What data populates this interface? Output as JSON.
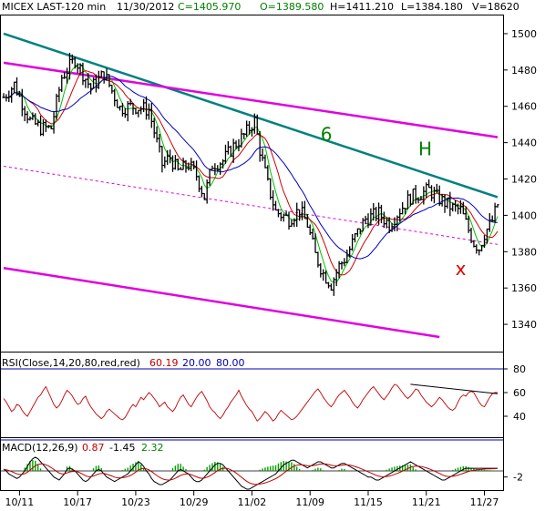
{
  "header": {
    "symbol": "MICEX LAST-120 min",
    "date": "11/30/2012",
    "close": "C=1405.970",
    "open": "O=1389.580",
    "high": "H=1411.210",
    "low": "L=1384.180",
    "volume": "V=18620"
  },
  "colors": {
    "header_date": "#000000",
    "header_values": "#008000",
    "price_bars": "#000000",
    "ma_fast": "#00c000",
    "ma_mid": "#d00000",
    "ma_slow": "#0000c0",
    "trend_magenta": "#e000e0",
    "trend_teal": "#008080",
    "rsi_line": "#c00000",
    "rsi_bounds": "#0000aa",
    "macd_line": "#000000",
    "signal_line": "#c00000",
    "histogram": "#00a000",
    "wave_labels": "#008000",
    "x_label": "#e00000"
  },
  "chart_data": [
    {
      "type": "line",
      "pane": "price",
      "title": "MICEX LAST-120 min",
      "ylim": [
        1325,
        1510
      ],
      "yticks": [
        1340,
        1360,
        1380,
        1400,
        1420,
        1440,
        1460,
        1480,
        1500
      ],
      "x_count": 188,
      "xticks": [
        {
          "i": 6,
          "label": "10/11"
        },
        {
          "i": 28,
          "label": "10/17"
        },
        {
          "i": 50,
          "label": "10/23"
        },
        {
          "i": 72,
          "label": "10/29"
        },
        {
          "i": 94,
          "label": "11/02"
        },
        {
          "i": 116,
          "label": "11/09"
        },
        {
          "i": 138,
          "label": "11/15"
        },
        {
          "i": 160,
          "label": "11/21"
        },
        {
          "i": 182,
          "label": "11/27"
        }
      ],
      "anchors": [
        [
          0,
          1465
        ],
        [
          4,
          1472
        ],
        [
          10,
          1452
        ],
        [
          14,
          1448
        ],
        [
          18,
          1448
        ],
        [
          22,
          1476
        ],
        [
          27,
          1486
        ],
        [
          33,
          1470
        ],
        [
          38,
          1478
        ],
        [
          44,
          1459
        ],
        [
          49,
          1460
        ],
        [
          55,
          1458
        ],
        [
          60,
          1428
        ],
        [
          63,
          1432
        ],
        [
          66,
          1424
        ],
        [
          70,
          1428
        ],
        [
          73,
          1422
        ],
        [
          76,
          1410
        ],
        [
          79,
          1428
        ],
        [
          83,
          1430
        ],
        [
          87,
          1438
        ],
        [
          91,
          1444
        ],
        [
          95,
          1452
        ],
        [
          97,
          1436
        ],
        [
          100,
          1417
        ],
        [
          103,
          1402
        ],
        [
          108,
          1398
        ],
        [
          112,
          1403
        ],
        [
          115,
          1395
        ],
        [
          118,
          1378
        ],
        [
          121,
          1368
        ],
        [
          124,
          1362
        ],
        [
          127,
          1372
        ],
        [
          130,
          1378
        ],
        [
          133,
          1388
        ],
        [
          137,
          1398
        ],
        [
          142,
          1401
        ],
        [
          146,
          1395
        ],
        [
          150,
          1403
        ],
        [
          154,
          1410
        ],
        [
          158,
          1412
        ],
        [
          161,
          1414
        ],
        [
          164,
          1410
        ],
        [
          167,
          1407
        ],
        [
          170,
          1404
        ],
        [
          173,
          1403
        ],
        [
          176,
          1392
        ],
        [
          178,
          1385
        ],
        [
          180,
          1382
        ],
        [
          182,
          1390
        ],
        [
          185,
          1397
        ],
        [
          187,
          1406
        ]
      ],
      "trendlines": [
        {
          "name": "teal",
          "color": "#008080",
          "from": [
            0,
            1500
          ],
          "to": [
            187,
            1410
          ]
        },
        {
          "name": "magenta-upper",
          "color": "#e000e0",
          "from": [
            0,
            1484
          ],
          "to": [
            187,
            1443
          ]
        },
        {
          "name": "magenta-mid-dashed",
          "color": "#e000e0",
          "dashed": true,
          "from": [
            0,
            1427
          ],
          "to": [
            187,
            1384
          ]
        },
        {
          "name": "magenta-lower",
          "color": "#e000e0",
          "from": [
            0,
            1371
          ],
          "to": [
            165,
            1333
          ]
        }
      ],
      "annotations": [
        {
          "text": "6",
          "at": [
            120,
            1441
          ],
          "color": "#008000"
        },
        {
          "text": "H",
          "at": [
            157,
            1433
          ],
          "color": "#008000"
        },
        {
          "text": "x",
          "at": [
            171,
            1367
          ],
          "color": "#e00000"
        }
      ]
    },
    {
      "type": "line",
      "pane": "rsi",
      "title": "RSI(Close,14,20,80,red,red)",
      "last_value": "60.19",
      "lower": "20.00",
      "upper": "80.00",
      "ylim": [
        20,
        80
      ],
      "yticks": [
        40,
        60,
        80
      ],
      "values": [
        55,
        52,
        48,
        44,
        46,
        50,
        49,
        45,
        42,
        40,
        44,
        48,
        52,
        56,
        58,
        62,
        65,
        60,
        55,
        50,
        47,
        49,
        53,
        58,
        62,
        60,
        57,
        53,
        50,
        51,
        55,
        57,
        52,
        48,
        45,
        42,
        40,
        38,
        40,
        44,
        46,
        44,
        42,
        40,
        38,
        37,
        39,
        43,
        47,
        50,
        48,
        52,
        56,
        54,
        57,
        60,
        58,
        55,
        52,
        48,
        50,
        52,
        48,
        46,
        44,
        47,
        52,
        56,
        58,
        54,
        50,
        48,
        52,
        56,
        59,
        61,
        57,
        53,
        48,
        45,
        43,
        40,
        38,
        41,
        45,
        48,
        52,
        55,
        58,
        62,
        57,
        53,
        49,
        46,
        44,
        40,
        36,
        38,
        41,
        44,
        42,
        39,
        36,
        38,
        42,
        45,
        43,
        41,
        39,
        37,
        38,
        40,
        43,
        46,
        49,
        52,
        55,
        58,
        61,
        63,
        60,
        56,
        53,
        50,
        48,
        51,
        55,
        58,
        60,
        62,
        59,
        56,
        52,
        49,
        47,
        50,
        54,
        57,
        60,
        63,
        65,
        62,
        59,
        56,
        54,
        57,
        60,
        64,
        67,
        66,
        63,
        60,
        57,
        55,
        57,
        60,
        63,
        62,
        58,
        55,
        52,
        50,
        48,
        50,
        53,
        56,
        54,
        51,
        48,
        46,
        45,
        47,
        52,
        56,
        58,
        57,
        60,
        61,
        60,
        56,
        52,
        49,
        48,
        52,
        56,
        59,
        60,
        60
      ],
      "divergence_line": {
        "from": [
          154,
          67
        ],
        "to": [
          187,
          59
        ]
      }
    },
    {
      "type": "bar",
      "pane": "macd",
      "title": "MACD(12,26,9)",
      "macd_value": "0.87",
      "signal_value": "-1.45",
      "hist_value": "2.32",
      "ylim": [
        -6,
        6
      ],
      "yticks": [
        -2
      ],
      "macd": [
        0.5,
        0.0,
        -1.0,
        -1.5,
        -2.0,
        -2.5,
        -2.0,
        -1.0,
        0.0,
        1.5,
        3.0,
        4.0,
        4.5,
        4.0,
        3.0,
        2.0,
        1.0,
        0.0,
        -1.0,
        -2.0,
        -2.5,
        -3.0,
        -2.0,
        -1.0,
        0.5,
        1.0,
        0.5,
        0.0,
        -1.0,
        -2.0,
        -3.0,
        -3.5,
        -3.0,
        -2.0,
        -1.0,
        0.0,
        0.5,
        0.0,
        -1.0,
        -2.0,
        -2.5,
        -3.0,
        -3.5,
        -3.0,
        -2.5,
        -2.0,
        -1.5,
        -1.0,
        0.0,
        1.0,
        2.0,
        3.0,
        2.5,
        1.5,
        0.0,
        -1.0,
        -2.5,
        -3.5,
        -4.0,
        -4.5,
        -4.5,
        -4.0,
        -3.5,
        -3.0,
        -2.0,
        -1.0,
        0.0,
        0.5,
        0.0,
        -0.5,
        -1.0,
        -2.0,
        -3.0,
        -3.5,
        -3.5,
        -3.0,
        -2.0,
        -1.0,
        0.0,
        1.0,
        2.0,
        2.5,
        2.5,
        2.0,
        1.0,
        0.0,
        -1.0,
        -2.0,
        -3.0,
        -4.0,
        -5.0,
        -5.5,
        -6.0,
        -6.0,
        -5.5,
        -5.0,
        -4.5,
        -4.0,
        -3.5,
        -3.0,
        -2.5,
        -2.0,
        -1.5,
        -1.0,
        0.0,
        1.0,
        2.0,
        2.5,
        3.0,
        3.5,
        3.5,
        3.0,
        2.5,
        2.0,
        1.5,
        1.0,
        1.5,
        2.0,
        2.5,
        3.0,
        3.0,
        2.5,
        2.0,
        1.5,
        1.0,
        1.0,
        1.5,
        2.0,
        2.5,
        2.5,
        2.0,
        1.5,
        1.0,
        0.5,
        0.0,
        -0.5,
        -1.0,
        -1.5,
        -2.0,
        -2.0,
        -2.5,
        -3.0,
        -3.0,
        -2.5,
        -2.0,
        -1.5,
        -1.0,
        -0.5,
        0.0,
        0.5,
        1.0,
        1.5,
        2.0,
        2.5,
        3.0,
        2.5,
        2.0,
        1.5,
        1.0,
        0.5,
        0.0,
        -0.5,
        -1.0,
        -1.5,
        -2.0,
        -2.5,
        -3.0,
        -3.0,
        -2.5,
        -2.0,
        -1.5,
        -1.0,
        -0.5,
        0.0,
        0.5,
        0.87,
        0.87,
        0.87,
        0.87,
        0.87,
        0.87,
        0.87,
        0.87,
        0.87,
        0.87,
        0.87,
        0.87,
        0.87
      ]
    }
  ]
}
